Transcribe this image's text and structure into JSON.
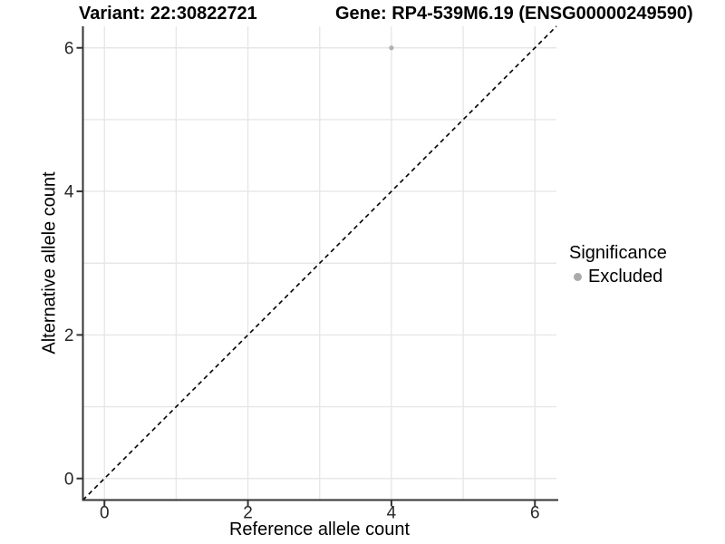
{
  "header": {
    "variant_title": "Variant: 22:30822721",
    "gene_title": "Gene: RP4-539M6.19 (ENSG00000249590)"
  },
  "legend": {
    "title": "Significance",
    "items": [
      {
        "label": "Excluded",
        "color": "#ababab"
      }
    ]
  },
  "style": {
    "grid_color": "#e7e7e7",
    "axis_color": "#333333",
    "tick_label_color": "#262626",
    "reference_line_color": "#000000",
    "point_color": "#b0b0b0"
  },
  "chart_data": {
    "type": "scatter",
    "title_left": "Variant: 22:30822721",
    "title_right": "Gene: RP4-539M6.19 (ENSG00000249590)",
    "xlabel": "Reference allele count",
    "ylabel": "Alternative allele count",
    "xlim": [
      -0.3,
      6.3
    ],
    "ylim": [
      -0.3,
      6.3
    ],
    "xticks": [
      0,
      2,
      4,
      6
    ],
    "yticks": [
      0,
      2,
      4,
      6
    ],
    "grid": true,
    "grid_interval": 1,
    "reference_line": {
      "type": "identity",
      "style": "dashed",
      "from": [
        -0.3,
        -0.3
      ],
      "to": [
        6.3,
        6.3
      ]
    },
    "series": [
      {
        "name": "Excluded",
        "color": "#b0b0b0",
        "points": [
          {
            "x": 4,
            "y": 6
          }
        ]
      }
    ],
    "legend_title": "Significance",
    "legend_position": "right"
  }
}
